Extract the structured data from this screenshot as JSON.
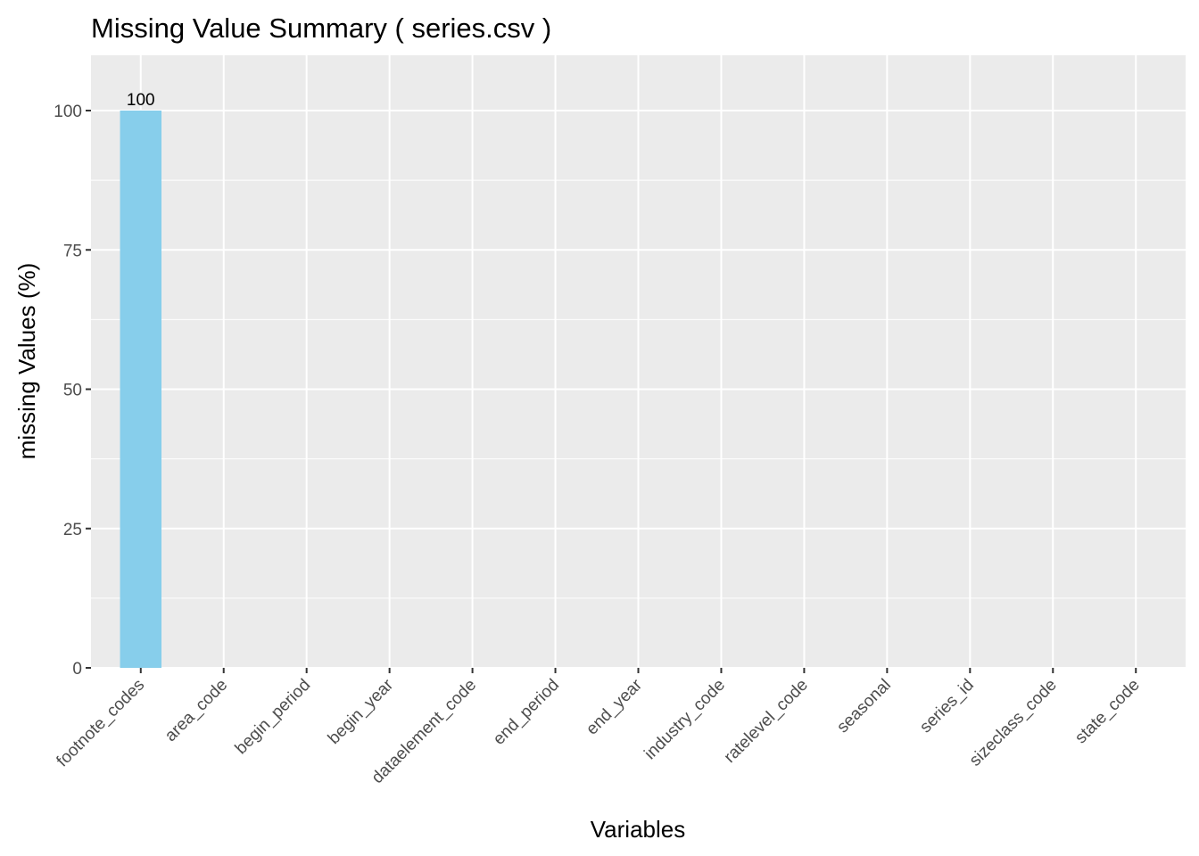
{
  "chart_data": {
    "type": "bar",
    "title": "Missing Value Summary ( series.csv )",
    "xlabel": "Variables",
    "ylabel": "missing Values (%)",
    "categories": [
      "footnote_codes",
      "area_code",
      "begin_period",
      "begin_year",
      "dataelement_code",
      "end_period",
      "end_year",
      "industry_code",
      "ratelevel_code",
      "seasonal",
      "series_id",
      "sizeclass_code",
      "state_code"
    ],
    "values": [
      100,
      0,
      0,
      0,
      0,
      0,
      0,
      0,
      0,
      0,
      0,
      0,
      0
    ],
    "data_labels": [
      "100",
      "",
      "",
      "",
      "",
      "",
      "",
      "",
      "",
      "",
      "",
      "",
      ""
    ],
    "ylim": [
      0,
      110
    ],
    "yticks": [
      0,
      25,
      50,
      75,
      100
    ],
    "ytick_labels": [
      "0",
      "25",
      "50",
      "75",
      "100"
    ],
    "grid": true,
    "legend": "none",
    "colors": {
      "bar": "#87CEEB",
      "panel_background": "#EBEBEB",
      "grid_line": "#FFFFFF",
      "tick_mark": "#333333",
      "tick_text": "#4D4D4D",
      "text": "#000000"
    }
  }
}
